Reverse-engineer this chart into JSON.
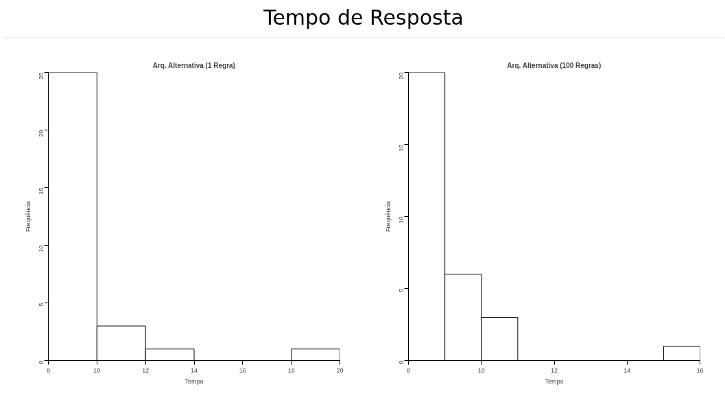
{
  "chart_data": [
    {
      "type": "histogram",
      "title": "Arq. Alternativa (1 Regra)",
      "annotations": [
        "Tempo de Resposta"
      ],
      "xlabel": "Tempo",
      "ylabel": "Frequência",
      "bins": [
        8,
        10,
        12,
        14,
        16,
        18,
        20
      ],
      "values": [
        25,
        3,
        1,
        0,
        0,
        1
      ],
      "color": "#ffffff",
      "xlim": [
        8,
        20
      ],
      "xticks": [
        8,
        10,
        12,
        14,
        16,
        18,
        20
      ],
      "ylim": [
        0,
        25
      ],
      "yticks": [
        0,
        5,
        10,
        15,
        20,
        25
      ],
      "grid": false
    },
    {
      "type": "histogram",
      "title": "Arq. Alternativa (100 Regras)",
      "xlabel": "Tempo",
      "ylabel": "Frequência",
      "bins": [
        8,
        9,
        10,
        11,
        12,
        13,
        14,
        15,
        16
      ],
      "values": [
        20,
        6,
        3,
        0,
        0,
        0,
        0,
        1
      ],
      "color": "#ffffff",
      "xlim": [
        8,
        16
      ],
      "xticks": [
        8,
        10,
        12,
        14,
        16
      ],
      "ylim": [
        0,
        20
      ],
      "yticks": [
        0,
        5,
        10,
        15,
        20
      ],
      "grid": false
    }
  ]
}
